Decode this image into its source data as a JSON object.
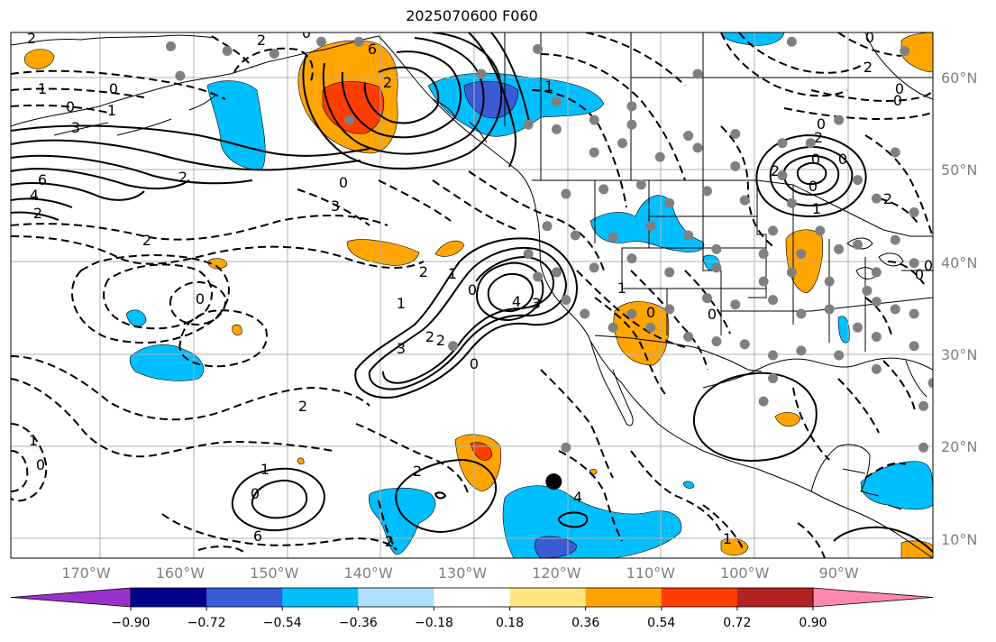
{
  "title": "2025070600 F060",
  "lon_labels": [
    {
      "value": -170,
      "text": "170°W"
    },
    {
      "value": -160,
      "text": "160°W"
    },
    {
      "value": -150,
      "text": "150°W"
    },
    {
      "value": -140,
      "text": "140°W"
    },
    {
      "value": -130,
      "text": "130°W"
    },
    {
      "value": -120,
      "text": "120°W"
    },
    {
      "value": -110,
      "text": "110°W"
    },
    {
      "value": -100,
      "text": "100°W"
    },
    {
      "value": -90,
      "text": "90°W"
    }
  ],
  "lat_labels": [
    {
      "value": 60,
      "text": "60°N"
    },
    {
      "value": 50,
      "text": "50°N"
    },
    {
      "value": 40,
      "text": "40°N"
    },
    {
      "value": 30,
      "text": "30°N"
    },
    {
      "value": 20,
      "text": "20°N"
    },
    {
      "value": 10,
      "text": "10°N"
    }
  ],
  "map_extent": {
    "lon_min": -178,
    "lon_max": -80,
    "lat_min": 8,
    "lat_max": 65
  },
  "colorbar": {
    "bounds": [
      -0.9,
      -0.72,
      -0.54,
      -0.36,
      -0.18,
      0.18,
      0.36,
      0.54,
      0.72,
      0.9
    ],
    "tick_labels": [
      "−0.90",
      "−0.72",
      "−0.54",
      "−0.36",
      "−0.18",
      "0.18",
      "0.36",
      "0.54",
      "0.72",
      "0.90"
    ],
    "colors": [
      "#9932cc",
      "#00008b",
      "#3a5bd6",
      "#00bfff",
      "#b0e0ff",
      "#ffffff",
      "#ffe680",
      "#ffa500",
      "#ff3d00",
      "#b22222",
      "#ff88b0"
    ],
    "extend": "both"
  },
  "colors": {
    "land_border": "#000000",
    "grid": "#b0b0b0",
    "station": "#808080",
    "contour": "#000000"
  },
  "contour_labels": [
    "2",
    "1",
    "0",
    "0",
    "1",
    "3",
    "6",
    "4",
    "2",
    "2",
    "0",
    "2",
    "2",
    "3",
    "6",
    "2",
    "0",
    "1",
    "3",
    "4",
    "3",
    "2",
    "2",
    "0",
    "1",
    "2",
    "0",
    "0",
    "2",
    "1",
    "0",
    "1",
    "0",
    "2",
    "6",
    "4",
    "2",
    "1",
    "0",
    "2",
    "0",
    "0",
    "0",
    "2",
    "0",
    "0",
    "0",
    "1",
    "2",
    "2",
    "1",
    "0",
    "0",
    "1",
    "0",
    "0"
  ],
  "markers": [
    {
      "type": "tropical-center",
      "lon": -120.3,
      "lat": 16.3
    }
  ],
  "stations": [
    [
      -161,
      63.5
    ],
    [
      -155,
      63
    ],
    [
      -160,
      60.3
    ],
    [
      -150,
      62.7
    ],
    [
      -145,
      64
    ],
    [
      -141,
      64
    ],
    [
      -122,
      63.2
    ],
    [
      -128,
      60.5
    ],
    [
      -105,
      60.5
    ],
    [
      -95,
      64
    ],
    [
      -83,
      63
    ],
    [
      -120,
      57.5
    ],
    [
      -112,
      57
    ],
    [
      -116,
      55.5
    ],
    [
      -113,
      53
    ],
    [
      -123,
      55
    ],
    [
      -120,
      54.5
    ],
    [
      -112,
      55
    ],
    [
      -101,
      54
    ],
    [
      -106,
      53.8
    ],
    [
      -105,
      52.5
    ],
    [
      -109,
      51.5
    ],
    [
      -116,
      52
    ],
    [
      -101,
      50.5
    ],
    [
      -96,
      53
    ],
    [
      -96,
      49.5
    ],
    [
      -93,
      53
    ],
    [
      -90,
      55.5
    ],
    [
      -88,
      49
    ],
    [
      -84,
      52
    ],
    [
      -86,
      47
    ],
    [
      -82,
      45.5
    ],
    [
      -111,
      48.5
    ],
    [
      -115,
      48
    ],
    [
      -119,
      47.5
    ],
    [
      -108,
      46.5
    ],
    [
      -104,
      47.8
    ],
    [
      -100,
      46.8
    ],
    [
      -95,
      46.5
    ],
    [
      -97,
      43.5
    ],
    [
      -92,
      43.5
    ],
    [
      -88,
      42
    ],
    [
      -84,
      42.5
    ],
    [
      -82,
      40
    ],
    [
      -86,
      39
    ],
    [
      -90,
      41.5
    ],
    [
      -94,
      41
    ],
    [
      -98,
      41
    ],
    [
      -103,
      41.5
    ],
    [
      -106,
      43
    ],
    [
      -110,
      44
    ],
    [
      -114,
      42.8
    ],
    [
      -118,
      43
    ],
    [
      -121,
      44
    ],
    [
      -123,
      41
    ],
    [
      -120,
      39
    ],
    [
      -116,
      39.5
    ],
    [
      -112,
      40.5
    ],
    [
      -108,
      39
    ],
    [
      -103,
      39.5
    ],
    [
      -98,
      38
    ],
    [
      -95,
      39
    ],
    [
      -91,
      38
    ],
    [
      -87,
      37
    ],
    [
      -84,
      35
    ],
    [
      -88,
      33
    ],
    [
      -91,
      35
    ],
    [
      -94,
      34.5
    ],
    [
      -97,
      36
    ],
    [
      -101,
      35.5
    ],
    [
      -104,
      36.2
    ],
    [
      -108,
      35
    ],
    [
      -112,
      34.5
    ],
    [
      -114,
      33
    ],
    [
      -117,
      34.5
    ],
    [
      -119,
      36
    ],
    [
      -122,
      38.5
    ],
    [
      -110,
      33
    ],
    [
      -106,
      32
    ],
    [
      -103,
      31.5
    ],
    [
      -100,
      31.2
    ],
    [
      -97,
      30
    ],
    [
      -94,
      30.5
    ],
    [
      -90,
      30
    ],
    [
      -86,
      32
    ],
    [
      -82,
      31
    ],
    [
      -86,
      28.5
    ],
    [
      -80,
      27
    ],
    [
      -81,
      24.5
    ],
    [
      -97,
      27.5
    ],
    [
      -98,
      25
    ],
    [
      -81,
      20
    ],
    [
      -86,
      35.8
    ],
    [
      -82,
      34.5
    ],
    [
      -131,
      31
    ],
    [
      -119,
      20
    ],
    [
      -142,
      55.5
    ]
  ],
  "contour_label_positions": null
}
